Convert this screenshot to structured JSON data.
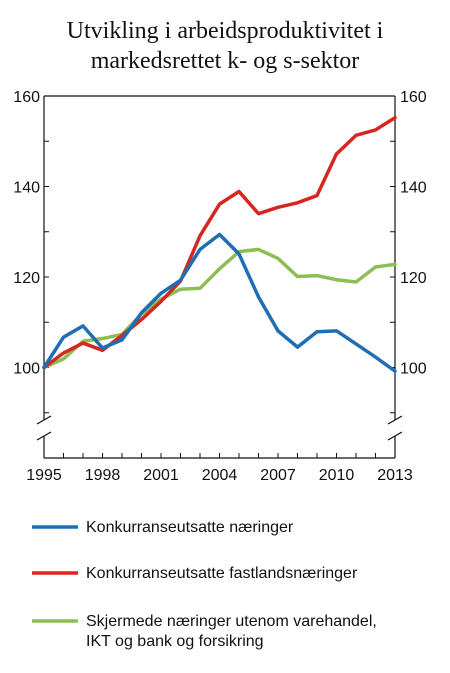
{
  "chart_data": {
    "type": "line",
    "title_lines": [
      "Utvikling i arbeidsproduktivitet i",
      "markedsrettet k- og s-sektor"
    ],
    "x_ticks": [
      "1995",
      "1998",
      "2001",
      "2004",
      "2007",
      "2010",
      "2013"
    ],
    "y_ticks": [
      "100",
      "120",
      "140",
      "160"
    ],
    "ylim": [
      80,
      160
    ],
    "y_axis_break": true,
    "legend_position": "bottom",
    "x": [
      1995,
      1996,
      1997,
      1998,
      1999,
      2000,
      2001,
      2002,
      2003,
      2004,
      2005,
      2006,
      2007,
      2008,
      2009,
      2010,
      2011,
      2012,
      2013
    ],
    "series": [
      {
        "name": "Konkurranseutsatte næringer",
        "color": "#1f6eb5",
        "values": [
          100,
          106.7,
          109.2,
          104.3,
          106.1,
          112.1,
          116.4,
          119.3,
          126.1,
          129.4,
          125.1,
          115.6,
          108.1,
          104.5,
          107.9,
          108.1,
          105.2,
          102.3,
          99.2
        ]
      },
      {
        "name": "Konkurranseutsatte fastlandsnæringer",
        "color": "#d7261f",
        "values": [
          100,
          103.2,
          105.4,
          103.8,
          107.1,
          110.6,
          114.6,
          119.1,
          129.1,
          136.1,
          138.9,
          134.0,
          135.4,
          136.4,
          138.0,
          147.2,
          151.3,
          152.5,
          155.2
        ]
      },
      {
        "name": "Skjermede næringer utenom varehandel,\nIKT og bank og forsikring",
        "color": "#8dbd55",
        "values": [
          100,
          101.9,
          105.8,
          106.4,
          107.3,
          111.8,
          115.1,
          117.3,
          117.5,
          121.8,
          125.6,
          126.1,
          124.1,
          120.1,
          120.3,
          119.4,
          118.9,
          122.2,
          122.8
        ]
      }
    ]
  }
}
